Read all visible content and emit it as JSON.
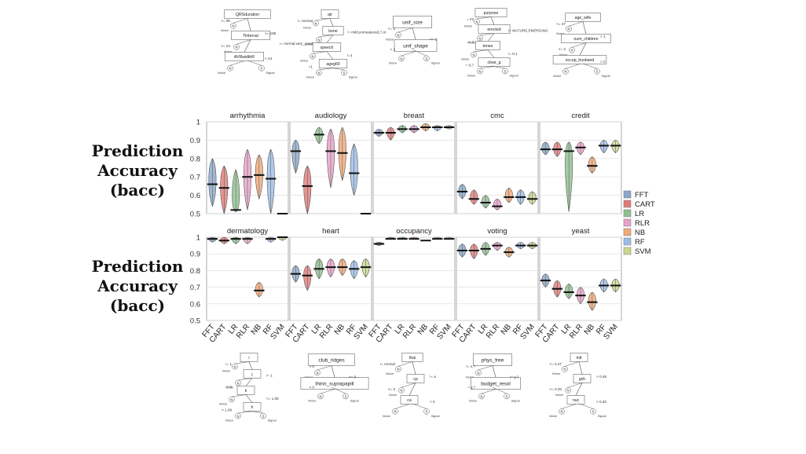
{
  "ylabel_lines": [
    "Prediction",
    "Accuracy",
    "(bacc)"
  ],
  "legend": [
    {
      "label": "FFT",
      "color": "#8aa6c9"
    },
    {
      "label": "CART",
      "color": "#e07b7b"
    },
    {
      "label": "LR",
      "color": "#8fbf8f"
    },
    {
      "label": "RLR",
      "color": "#e8a0c8"
    },
    {
      "label": "NB",
      "color": "#efa878"
    },
    {
      "label": "RF",
      "color": "#9cbde6"
    },
    {
      "label": "SVM",
      "color": "#c8d98c"
    }
  ],
  "chart_data": {
    "type": "violin",
    "ylabel": "Prediction Accuracy (bacc)",
    "yticks": [
      "1",
      "0.9",
      "0.8",
      "0.7",
      "0.6",
      "0.5"
    ],
    "ylim": [
      0.5,
      1.0
    ],
    "categories": [
      "FFT",
      "CART",
      "LR",
      "RLR",
      "NB",
      "RF",
      "SVM"
    ],
    "panels": [
      {
        "title": "arrhythmia",
        "medians": [
          0.66,
          0.64,
          0.52,
          0.7,
          0.71,
          0.69,
          0.5
        ],
        "ranges": [
          [
            0.54,
            0.8
          ],
          [
            0.5,
            0.76
          ],
          [
            0.51,
            0.74
          ],
          [
            0.52,
            0.85
          ],
          [
            0.58,
            0.82
          ],
          [
            0.5,
            0.85
          ],
          [
            0.5,
            0.5
          ]
        ]
      },
      {
        "title": "audiology",
        "medians": [
          0.84,
          0.65,
          0.93,
          0.84,
          0.83,
          0.72,
          0.5
        ],
        "ranges": [
          [
            0.72,
            0.9
          ],
          [
            0.5,
            0.76
          ],
          [
            0.88,
            0.97
          ],
          [
            0.64,
            0.96
          ],
          [
            0.68,
            0.97
          ],
          [
            0.6,
            0.88
          ],
          [
            0.5,
            0.5
          ]
        ]
      },
      {
        "title": "breast",
        "medians": [
          0.94,
          0.94,
          0.96,
          0.96,
          0.97,
          0.97,
          0.97
        ],
        "ranges": [
          [
            0.92,
            0.96
          ],
          [
            0.9,
            0.97
          ],
          [
            0.94,
            0.98
          ],
          [
            0.94,
            0.98
          ],
          [
            0.95,
            0.99
          ],
          [
            0.95,
            0.98
          ],
          [
            0.96,
            0.98
          ]
        ]
      },
      {
        "title": "cmc",
        "medians": [
          0.62,
          0.58,
          0.56,
          0.54,
          0.59,
          0.59,
          0.58
        ],
        "ranges": [
          [
            0.58,
            0.66
          ],
          [
            0.55,
            0.63
          ],
          [
            0.53,
            0.6
          ],
          [
            0.52,
            0.58
          ],
          [
            0.56,
            0.64
          ],
          [
            0.55,
            0.63
          ],
          [
            0.55,
            0.62
          ]
        ]
      },
      {
        "title": "credit",
        "medians": [
          0.85,
          0.85,
          0.84,
          0.86,
          0.76,
          0.87,
          0.87
        ],
        "ranges": [
          [
            0.82,
            0.89
          ],
          [
            0.81,
            0.89
          ],
          [
            0.51,
            0.89
          ],
          [
            0.82,
            0.89
          ],
          [
            0.72,
            0.81
          ],
          [
            0.83,
            0.9
          ],
          [
            0.83,
            0.9
          ]
        ]
      },
      {
        "title": "dermatology",
        "medians": [
          0.99,
          0.98,
          0.99,
          0.99,
          0.68,
          0.99,
          1.0
        ],
        "ranges": [
          [
            0.97,
            1.0
          ],
          [
            0.96,
            1.0
          ],
          [
            0.96,
            1.0
          ],
          [
            0.96,
            1.0
          ],
          [
            0.64,
            0.73
          ],
          [
            0.97,
            1.0
          ],
          [
            0.98,
            1.0
          ]
        ]
      },
      {
        "title": "heart",
        "medians": [
          0.78,
          0.77,
          0.81,
          0.82,
          0.82,
          0.81,
          0.82
        ],
        "ranges": [
          [
            0.73,
            0.83
          ],
          [
            0.68,
            0.83
          ],
          [
            0.75,
            0.87
          ],
          [
            0.76,
            0.87
          ],
          [
            0.77,
            0.87
          ],
          [
            0.75,
            0.86
          ],
          [
            0.76,
            0.87
          ]
        ]
      },
      {
        "title": "occupancy",
        "medians": [
          0.96,
          0.99,
          0.99,
          0.99,
          0.98,
          0.99,
          0.99
        ],
        "ranges": [
          [
            0.95,
            0.97
          ],
          [
            0.99,
            1.0
          ],
          [
            0.99,
            1.0
          ],
          [
            0.99,
            1.0
          ],
          [
            0.98,
            0.98
          ],
          [
            0.99,
            1.0
          ],
          [
            0.99,
            1.0
          ]
        ]
      },
      {
        "title": "voting",
        "medians": [
          0.92,
          0.92,
          0.93,
          0.95,
          0.91,
          0.95,
          0.95
        ],
        "ranges": [
          [
            0.88,
            0.96
          ],
          [
            0.87,
            0.96
          ],
          [
            0.89,
            0.97
          ],
          [
            0.92,
            0.97
          ],
          [
            0.88,
            0.94
          ],
          [
            0.93,
            0.97
          ],
          [
            0.93,
            0.97
          ]
        ]
      },
      {
        "title": "yeast",
        "medians": [
          0.74,
          0.69,
          0.67,
          0.65,
          0.61,
          0.71,
          0.71
        ],
        "ranges": [
          [
            0.7,
            0.78
          ],
          [
            0.64,
            0.74
          ],
          [
            0.63,
            0.72
          ],
          [
            0.6,
            0.7
          ],
          [
            0.56,
            0.67
          ],
          [
            0.67,
            0.75
          ],
          [
            0.67,
            0.75
          ]
        ]
      }
    ]
  },
  "trees": [
    {
      "nodes": [
        "QRSduration",
        "Tinterval",
        "AVRwidthR"
      ],
      "cues": [
        ">= 96",
        ">= 185",
        ">= 24",
        "< 24"
      ]
    },
    {
      "nodes": [
        "air",
        "bone",
        "speech",
        "ageg60"
      ],
      "cues": [
        "!= normal",
        "!= mild,unmeasured,?,m",
        "!= normal,very_good",
        "!=1",
        "=1"
      ]
    },
    {
      "nodes": [
        "unif_size",
        "unif_shape"
      ],
      "cues": [
        "<= 2",
        "<= 2",
        "> 2"
      ]
    },
    {
      "nodes": [
        "purpose",
        "erected",
        "tenes",
        "clear_g"
      ],
      "cues": [
        "= mt",
        "!= MATURE,EMERGING",
        "< 4",
        "!= 0,1",
        "= 0,?"
      ]
    },
    {
      "nodes": [
        "age_wife",
        "num_children",
        "occup_husband"
      ],
      "cues": [
        ">= 37",
        "> 1",
        "<= 2",
        "> 2"
      ]
    },
    {
      "nodes": [
        "i",
        "j",
        "k",
        "h"
      ],
      "cues": [
        "!= 1",
        "!= 1",
        "> 0",
        "<= 1.09",
        "> 1.09"
      ]
    },
    {
      "nodes": [
        "club_ridges",
        "thinn_suprapapill"
      ],
      "cues": [
        "> 0",
        "<= 0",
        "> 0"
      ]
    },
    {
      "nodes": [
        "thai",
        "cp",
        "ca"
      ],
      "cues": [
        "!= normal",
        "!= a",
        "<= 0",
        "> 0"
      ]
    },
    {
      "nodes": [
        "phys_free",
        "budget_resol"
      ],
      "cues": [
        "!= n,?",
        "!= y,?",
        "= y,?"
      ]
    },
    {
      "nodes": [
        "mit",
        "gvh",
        "nuc"
      ],
      "cues": [
        "<= 0.27",
        "> 0.48",
        ">= 0.25",
        "< 0.25"
      ]
    }
  ],
  "leaf_labels": {
    "noise": "Noise",
    "signal": "Signal",
    "n": "N",
    "s": "S"
  }
}
